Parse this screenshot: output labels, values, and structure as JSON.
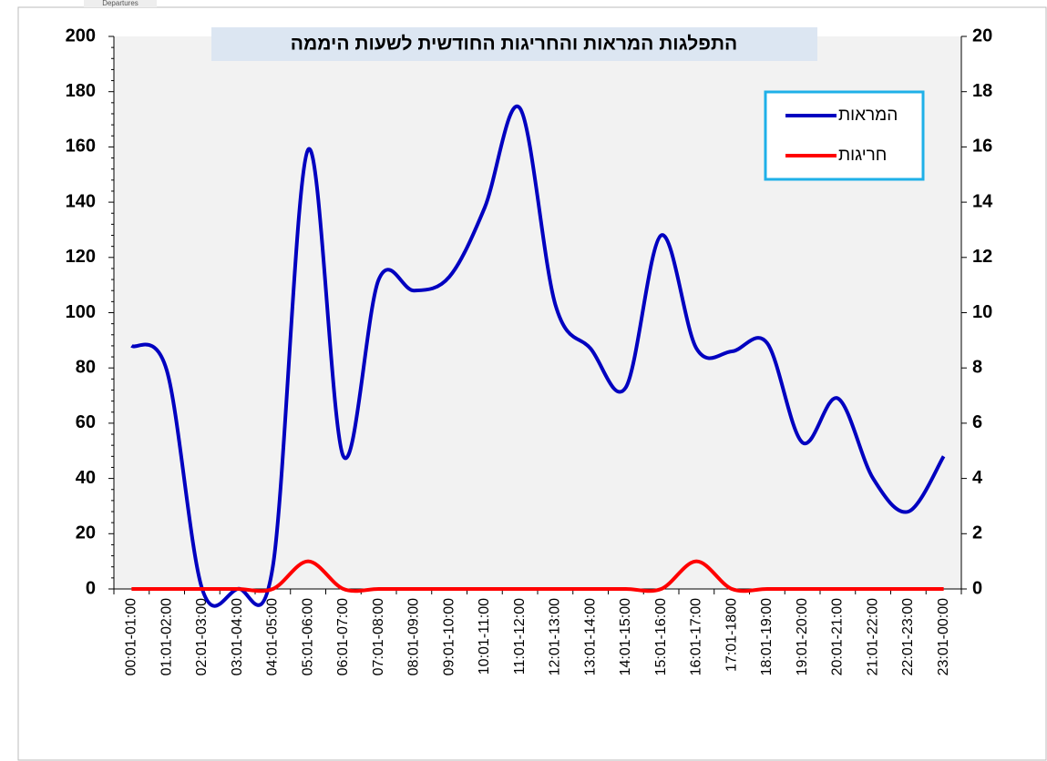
{
  "chart_data": {
    "type": "line",
    "corner_label": "Departures",
    "title": "התפלגות המראות והחריגות החודשית לשעות היממה",
    "categories": [
      "00:01-01:00",
      "01:01-02:00",
      "02:01-03:00",
      "03:01-04:00",
      "04:01-05:00",
      "05:01-06:00",
      "06:01-07:00",
      "07:01-08:00",
      "08:01-09:00",
      "09:01-10:00",
      "10:01-11:00",
      "11:01-12:00",
      "12:01-13:00",
      "13:01-14:00",
      "14:01-15:00",
      "15:01-16:00",
      "16:01-17:00",
      "17:01-1800",
      "18:01-19:00",
      "19:01-20:00",
      "20:01-21:00",
      "21:01-22:00",
      "22:01-23:00",
      "23:01-00:00"
    ],
    "series": [
      {
        "name": "המראות",
        "color": "#0000c0",
        "axis": "y",
        "values": [
          88,
          79,
          0,
          0,
          8,
          159,
          48,
          112,
          108,
          113,
          138,
          174,
          103,
          87,
          73,
          128,
          87,
          86,
          89,
          53,
          69,
          40,
          28,
          48
        ]
      },
      {
        "name": "חריגות",
        "color": "#ff0000",
        "axis": "y2",
        "values": [
          0,
          0,
          0,
          0,
          0,
          1,
          0,
          0,
          0,
          0,
          0,
          0,
          0,
          0,
          0,
          0,
          1,
          0,
          0,
          0,
          0,
          0,
          0,
          0
        ]
      }
    ],
    "ylim": [
      0,
      200
    ],
    "yticks": [
      0,
      20,
      40,
      60,
      80,
      100,
      120,
      140,
      160,
      180,
      200
    ],
    "y2lim": [
      0,
      20
    ],
    "y2ticks": [
      0,
      2,
      4,
      6,
      8,
      10,
      12,
      14,
      16,
      18,
      20
    ],
    "grid": false,
    "legend": "upper right",
    "smooth": true
  }
}
